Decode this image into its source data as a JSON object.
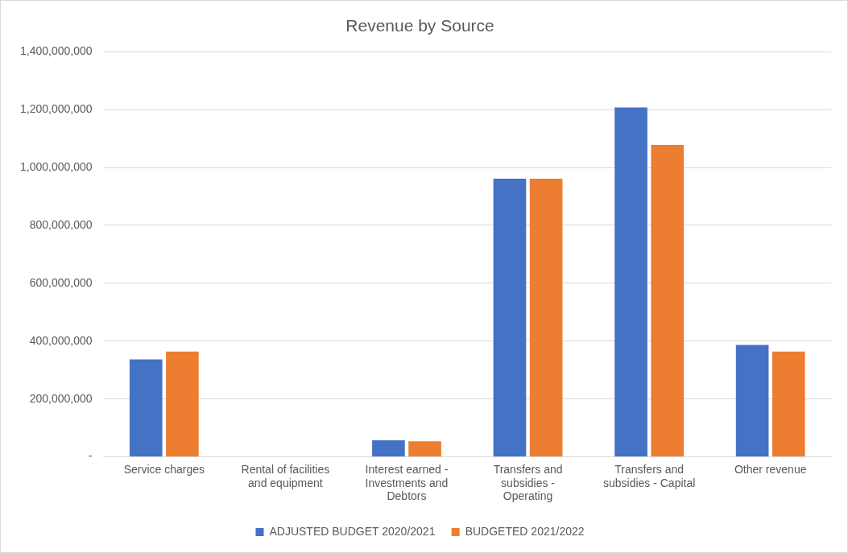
{
  "chart_data": {
    "type": "bar",
    "title": "Revenue by Source",
    "categories": [
      "Service charges",
      "Rental of facilities and equipment",
      "Interest earned - Investments and Debtors",
      "Transfers and subsidies - Operating",
      "Transfers and subsidies - Capital",
      "Other revenue"
    ],
    "series": [
      {
        "name": "ADJUSTED BUDGET 2020/2021",
        "color": "#4472c4",
        "values": [
          337000000,
          0,
          57000000,
          961000000,
          1207000000,
          387000000
        ]
      },
      {
        "name": "BUDGETED 2021/2022",
        "color": "#ed7d31",
        "values": [
          364000000,
          0,
          54000000,
          961000000,
          1078000000,
          364000000
        ]
      }
    ],
    "ylim": [
      0,
      1400000000
    ],
    "yticks": [
      {
        "value": 0,
        "label": "-"
      },
      {
        "value": 200000000,
        "label": "200,000,000"
      },
      {
        "value": 400000000,
        "label": "400,000,000"
      },
      {
        "value": 600000000,
        "label": "600,000,000"
      },
      {
        "value": 800000000,
        "label": "800,000,000"
      },
      {
        "value": 1000000000,
        "label": "1,000,000,000"
      },
      {
        "value": 1200000000,
        "label": "1,200,000,000"
      },
      {
        "value": 1400000000,
        "label": "1,400,000,000"
      }
    ],
    "grid": "y",
    "legend": "bottom"
  }
}
